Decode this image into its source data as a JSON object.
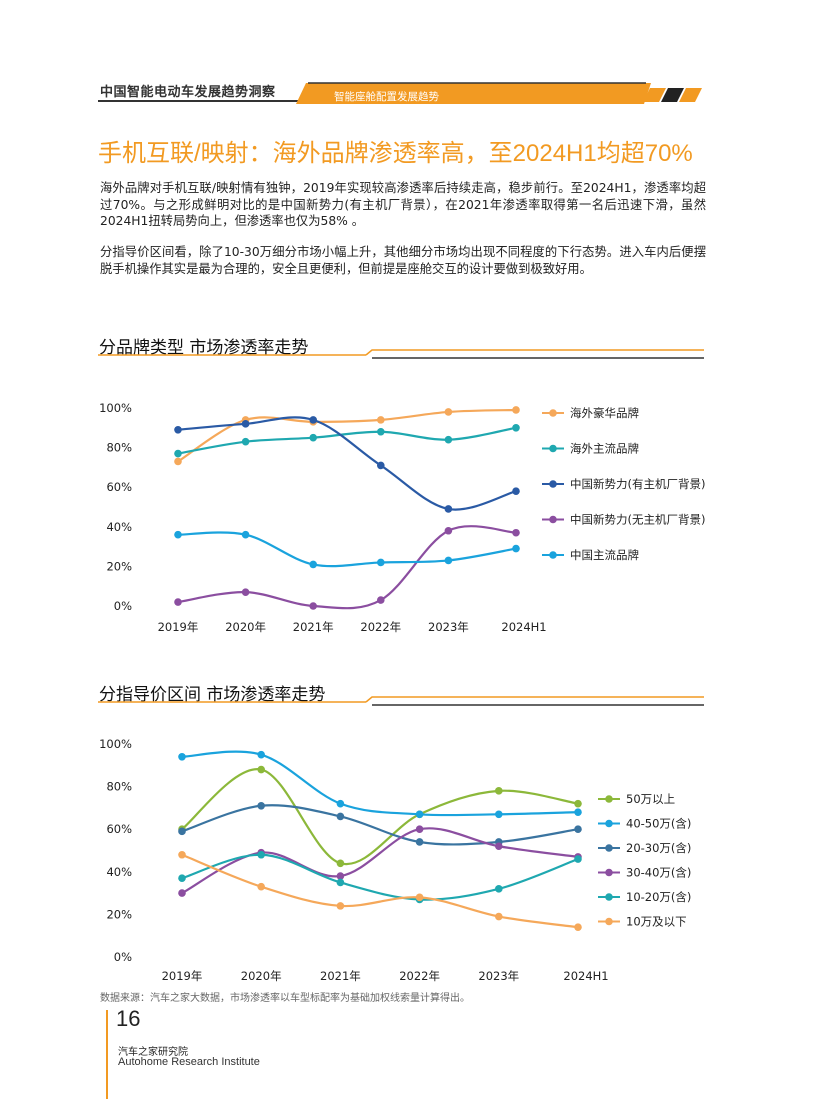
{
  "header": {
    "report_title": "中国智能电动车发展趋势洞察",
    "section_tab": "智能座舱配置发展趋势"
  },
  "page": {
    "title": "手机互联/映射：海外品牌渗透率高，至2024H1均超70%",
    "paragraph1": "海外品牌对手机互联/映射情有独钟，2019年实现较高渗透率后持续走高，稳步前行。至2024H1，渗透率均超过70%。与之形成鲜明对比的是中国新势力(有主机厂背景），在2021年渗透率取得第一名后迅速下滑，虽然2024H1扭转局势向上，但渗透率也仅为58% 。",
    "paragraph2": "分指导价区间看，除了10-30万细分市场小幅上升，其他细分市场均出现不同程度的下行态势。进入车内后便摆脱手机操作其实是最为合理的，安全且更便利，但前提是座舱交互的设计要做到极致好用。"
  },
  "source_note": "数据来源：汽车之家大数据，市场渗透率以车型标配率为基础加权线索量计算得出。",
  "footer": {
    "page_number": "16",
    "org_cn": "汽车之家研究院",
    "org_en": "Autohome Research Institute"
  },
  "colors": {
    "accent_orange": "#f29a22",
    "dark": "#222222"
  },
  "chart_data": [
    {
      "type": "line",
      "title": "分品牌类型  市场渗透率走势",
      "categories": [
        "2019年",
        "2020年",
        "2021年",
        "2022年",
        "2023年",
        "2024H1"
      ],
      "y_ticks": [
        "0%",
        "20%",
        "40%",
        "60%",
        "80%",
        "100%"
      ],
      "ylim": [
        0,
        100
      ],
      "legend_position": "right",
      "grid": false,
      "series": [
        {
          "name": "海外豪华品牌",
          "color": "#f5a85a",
          "values": [
            73,
            94,
            93,
            94,
            98,
            99
          ]
        },
        {
          "name": "海外主流品牌",
          "color": "#1fa8b0",
          "values": [
            77,
            83,
            85,
            88,
            84,
            90
          ]
        },
        {
          "name": "中国新势力(有主机厂背景)",
          "color": "#2a5aa5",
          "values": [
            89,
            92,
            94,
            71,
            49,
            58
          ]
        },
        {
          "name": "中国新势力(无主机厂背景)",
          "color": "#8b4ea0",
          "values": [
            2,
            7,
            0,
            3,
            38,
            37
          ]
        },
        {
          "name": "中国主流品牌",
          "color": "#1aa3dd",
          "values": [
            36,
            36,
            21,
            22,
            23,
            29
          ]
        }
      ]
    },
    {
      "type": "line",
      "title": "分指导价区间  市场渗透率走势",
      "categories": [
        "2019年",
        "2020年",
        "2021年",
        "2022年",
        "2023年",
        "2024H1"
      ],
      "y_ticks": [
        "0%",
        "20%",
        "40%",
        "60%",
        "80%",
        "100%"
      ],
      "ylim": [
        0,
        100
      ],
      "legend_position": "right",
      "grid": false,
      "series": [
        {
          "name": "50万以上",
          "color": "#8cb83a",
          "values": [
            60,
            88,
            44,
            67,
            78,
            72
          ]
        },
        {
          "name": "40-50万(含)",
          "color": "#1aa3dd",
          "values": [
            94,
            95,
            72,
            67,
            67,
            68
          ]
        },
        {
          "name": "20-30万(含)",
          "color": "#3a74a0",
          "values": [
            59,
            71,
            66,
            54,
            54,
            60
          ]
        },
        {
          "name": "30-40万(含)",
          "color": "#8b4ea0",
          "values": [
            30,
            49,
            38,
            60,
            52,
            47
          ]
        },
        {
          "name": "10-20万(含)",
          "color": "#1fa8b0",
          "values": [
            37,
            48,
            35,
            27,
            32,
            46
          ]
        },
        {
          "name": "10万及以下",
          "color": "#f5a85a",
          "values": [
            48,
            33,
            24,
            28,
            19,
            14
          ]
        }
      ]
    }
  ]
}
